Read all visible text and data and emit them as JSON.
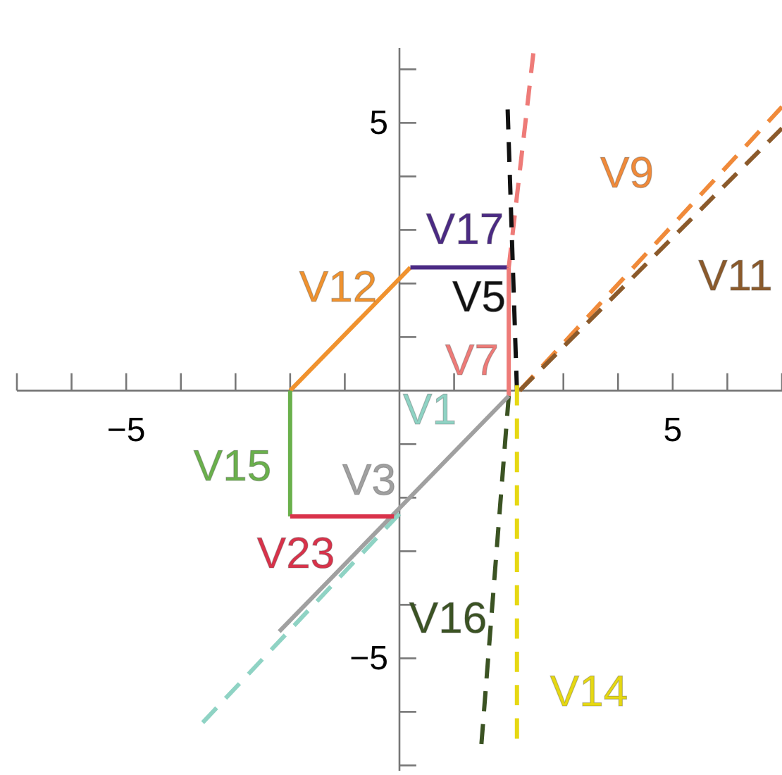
{
  "chart_data": {
    "type": "line",
    "xlim": [
      -7,
      7
    ],
    "ylim": [
      -7.1,
      6.4
    ],
    "xticks": [
      {
        "value": -7,
        "label": null
      },
      {
        "value": -6,
        "label": null
      },
      {
        "value": -5,
        "label": "−5"
      },
      {
        "value": -4,
        "label": null
      },
      {
        "value": -3,
        "label": null
      },
      {
        "value": -2,
        "label": null
      },
      {
        "value": -1,
        "label": null
      },
      {
        "value": 1,
        "label": null
      },
      {
        "value": 2,
        "label": null
      },
      {
        "value": 3,
        "label": null
      },
      {
        "value": 4,
        "label": null
      },
      5,
      {
        "value": 6,
        "label": null
      },
      {
        "value": 7,
        "label": null
      }
    ],
    "yticks": [
      {
        "value": -7,
        "label": null
      },
      {
        "value": -6,
        "label": null
      },
      {
        "value": -5,
        "label": "−5"
      },
      {
        "value": -4,
        "label": null
      },
      {
        "value": -3,
        "label": null
      },
      {
        "value": -2,
        "label": null
      },
      {
        "value": -1,
        "label": null
      },
      {
        "value": 1,
        "label": null
      },
      {
        "value": 2,
        "label": null
      },
      {
        "value": 3,
        "label": null
      },
      {
        "value": 4,
        "label": null
      },
      5,
      {
        "value": 6,
        "label": null
      }
    ],
    "grid": false,
    "legend": false,
    "marker": "none",
    "series": [
      {
        "name": "V12",
        "color": "#f0922e",
        "line_style": "solid",
        "x": [
          -2,
          0.2
        ],
        "values": [
          0,
          2.3
        ]
      },
      {
        "name": "V17",
        "color": "#4b2a84",
        "line_style": "solid",
        "x": [
          0.2,
          2
        ],
        "values": [
          2.3,
          2.3
        ]
      },
      {
        "name": "V7",
        "color": "#ee7b78",
        "line_style": "solid",
        "x": [
          2,
          2
        ],
        "values": [
          2.3,
          -0.1
        ]
      },
      {
        "color": "#ee7b78",
        "line_style": "dashed",
        "x": [
          2,
          2.45
        ],
        "values": [
          2.3,
          6.3
        ]
      },
      {
        "name": "V5",
        "color": "#111111",
        "line_style": "dashed",
        "x": [
          2.15,
          1.98
        ],
        "values": [
          0,
          5.25
        ]
      },
      {
        "name": "V9",
        "color": "#f08a3a",
        "line_style": "dashed",
        "x": [
          2.2,
          7
        ],
        "values": [
          0,
          5.3
        ]
      },
      {
        "name": "V11",
        "color": "#8b5a2b",
        "line_style": "dashed",
        "x": [
          2.2,
          7
        ],
        "values": [
          0,
          4.9
        ]
      },
      {
        "name": "V14",
        "color": "#e6d812",
        "line_style": "dashed",
        "x": [
          2.15,
          2.15
        ],
        "values": [
          0.1,
          -6.5
        ]
      },
      {
        "name": "V16",
        "color": "#3b5323",
        "line_style": "dashed",
        "x": [
          2,
          1.5
        ],
        "values": [
          -0.1,
          -6.6
        ]
      },
      {
        "name": "V1",
        "color": "#8fd3c4",
        "line_style": "dashed",
        "x": [
          -3.6,
          0
        ],
        "values": [
          -6.2,
          -2.3
        ]
      },
      {
        "name": "V3",
        "color": "#a0a0a0",
        "line_style": "solid",
        "x": [
          -2.2,
          2
        ],
        "values": [
          -4.5,
          -0.1
        ]
      },
      {
        "name": "V15",
        "color": "#6ab04c",
        "line_style": "solid",
        "x": [
          -2,
          -2
        ],
        "values": [
          0,
          -2.35
        ]
      },
      {
        "name": "V23",
        "color": "#d9324a",
        "line_style": "solid",
        "x": [
          -2,
          -0.1
        ],
        "values": [
          -2.35,
          -2.35
        ]
      }
    ]
  }
}
